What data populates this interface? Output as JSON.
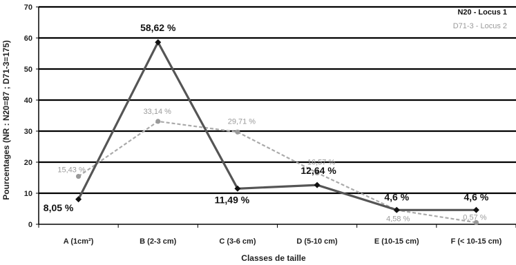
{
  "chart_data": {
    "type": "line",
    "xlabel": "Classes de taille",
    "ylabel": "Pourcentages (NR : N20=87 ; D71-3=175)",
    "ylim": [
      0,
      70
    ],
    "yticks": [
      "0",
      "10",
      "20",
      "30",
      "40",
      "50",
      "60",
      "70"
    ],
    "categories": [
      "A (1cm²)",
      "B (2-3 cm)",
      "C (3-6 cm)",
      "D (5-10 cm)",
      "E (10-15 cm)",
      "F (< 10-15 cm)"
    ],
    "grid": true,
    "legend_position": "top-right",
    "series": [
      {
        "name": "N20 - Locus 1",
        "values": [
          8.05,
          58.62,
          11.49,
          12.64,
          4.6,
          4.6
        ],
        "labels": [
          "8,05 %",
          "58,62 %",
          "11,49 %",
          "12,64 %",
          "4,6 %",
          "4,6 %"
        ],
        "color": "#555555",
        "marker_color": "#111111",
        "style": "solid"
      },
      {
        "name": "D71-3 - Locus 2",
        "values": [
          15.43,
          33.14,
          29.71,
          16.57,
          4.58,
          0.57
        ],
        "labels": [
          "15,43 %",
          "33,14 %",
          "29,71 %",
          "16,57 %",
          "4,58 %",
          "0,57 %"
        ],
        "color": "#aaaaaa",
        "marker_color": "#999999",
        "style": "dashed"
      }
    ]
  }
}
